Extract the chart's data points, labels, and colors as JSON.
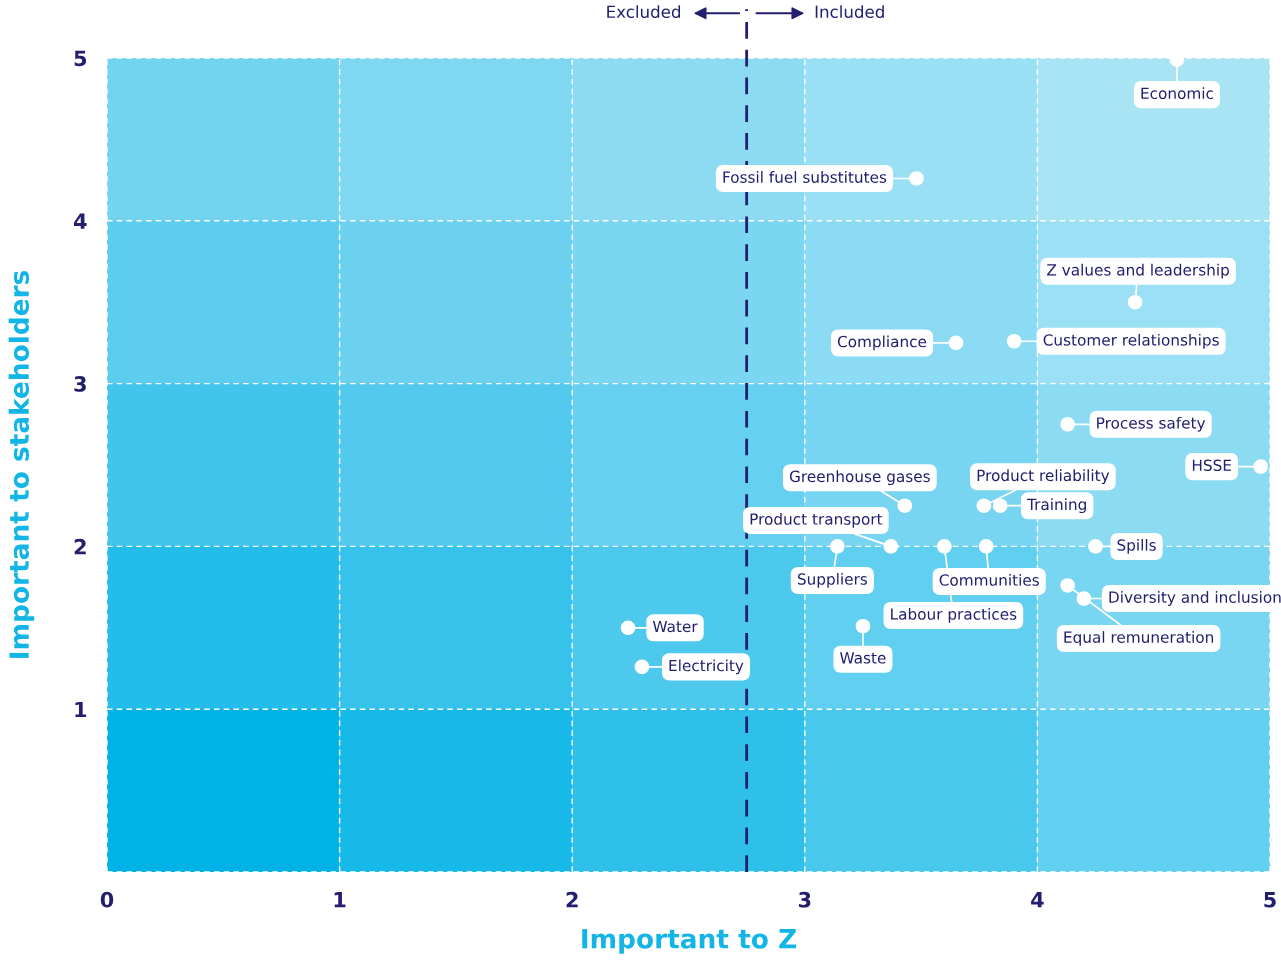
{
  "chart_data": {
    "type": "scatter",
    "xlabel": "Important to Z",
    "ylabel": "Important to stakeholders",
    "xlim": [
      0,
      5
    ],
    "ylim": [
      0,
      5
    ],
    "xticks": [
      0,
      1,
      2,
      3,
      4,
      5
    ],
    "yticks": [
      {
        "value": 0,
        "label": null
      },
      1,
      2,
      3,
      4,
      5
    ],
    "grid": true,
    "marker": "circle",
    "series": [
      {
        "color": "#ffffff",
        "x": [
          4.6,
          3.48,
          4.42,
          3.65,
          3.9,
          4.13,
          4.96,
          3.43,
          3.77,
          3.84,
          3.37,
          3.14,
          3.6,
          3.78,
          4.25,
          4.13,
          4.2,
          3.25,
          2.24,
          2.3
        ],
        "values": [
          4.99,
          4.26,
          3.5,
          3.25,
          3.26,
          2.75,
          2.49,
          2.25,
          2.25,
          2.25,
          2.0,
          2.0,
          2.0,
          2.0,
          2.0,
          1.76,
          1.68,
          1.51,
          1.5,
          1.26
        ]
      }
    ],
    "ref_lines": [
      {
        "axis": "x",
        "value": 2.75,
        "color": "#231f6e",
        "line_style": "dashed"
      }
    ],
    "bands": [
      {
        "axis": "x",
        "from": 0,
        "to": 1,
        "color": "#00b2e6"
      },
      {
        "axis": "x",
        "from": 1,
        "to": 2,
        "color": "#17b9e8"
      },
      {
        "axis": "x",
        "from": 2,
        "to": 3,
        "color": "#2fc0ea"
      },
      {
        "axis": "x",
        "from": 3,
        "to": 4,
        "color": "#48c8ed"
      },
      {
        "axis": "x",
        "from": 4,
        "to": 5,
        "color": "#62d0f0"
      },
      {
        "axis": "y",
        "from": 1,
        "to": 5,
        "color": "#ffffff"
      },
      {
        "axis": "y",
        "from": 2,
        "to": 5,
        "color": "#ffffff"
      },
      {
        "axis": "y",
        "from": 3,
        "to": 5,
        "color": "#ffffff"
      },
      {
        "axis": "y",
        "from": 4,
        "to": 5,
        "color": "#ffffff"
      }
    ],
    "annotations": [
      {
        "text": "Economic",
        "x": 4.6,
        "y": 4.99
      },
      {
        "text": "Fossil fuel substitutes",
        "x": 3.48,
        "y": 4.26
      },
      {
        "text": "Z values and leadership",
        "x": 4.42,
        "y": 3.5
      },
      {
        "text": "Compliance",
        "x": 3.65,
        "y": 3.25
      },
      {
        "text": "Customer relationships",
        "x": 3.9,
        "y": 3.26
      },
      {
        "text": "Process safety",
        "x": 4.13,
        "y": 2.75
      },
      {
        "text": "HSSE",
        "x": 4.96,
        "y": 2.49
      },
      {
        "text": "Greenhouse gases",
        "x": 3.43,
        "y": 2.25
      },
      {
        "text": "Product reliability",
        "x": 3.77,
        "y": 2.25
      },
      {
        "text": "Training",
        "x": 3.84,
        "y": 2.25
      },
      {
        "text": "Product transport",
        "x": 3.37,
        "y": 2.0
      },
      {
        "text": "Suppliers",
        "x": 3.14,
        "y": 2.0
      },
      {
        "text": "Labour practices",
        "x": 3.6,
        "y": 2.0
      },
      {
        "text": "Communities",
        "x": 3.78,
        "y": 2.0
      },
      {
        "text": "Spills",
        "x": 4.25,
        "y": 2.0
      },
      {
        "text": "Equal remuneration",
        "x": 4.13,
        "y": 1.76
      },
      {
        "text": "Diversity and inclusion",
        "x": 4.2,
        "y": 1.68
      },
      {
        "text": "Waste",
        "x": 3.25,
        "y": 1.51
      },
      {
        "text": "Water",
        "x": 2.24,
        "y": 1.5
      },
      {
        "text": "Electricity",
        "x": 2.3,
        "y": 1.26
      },
      "Excluded",
      "Included"
    ]
  }
}
